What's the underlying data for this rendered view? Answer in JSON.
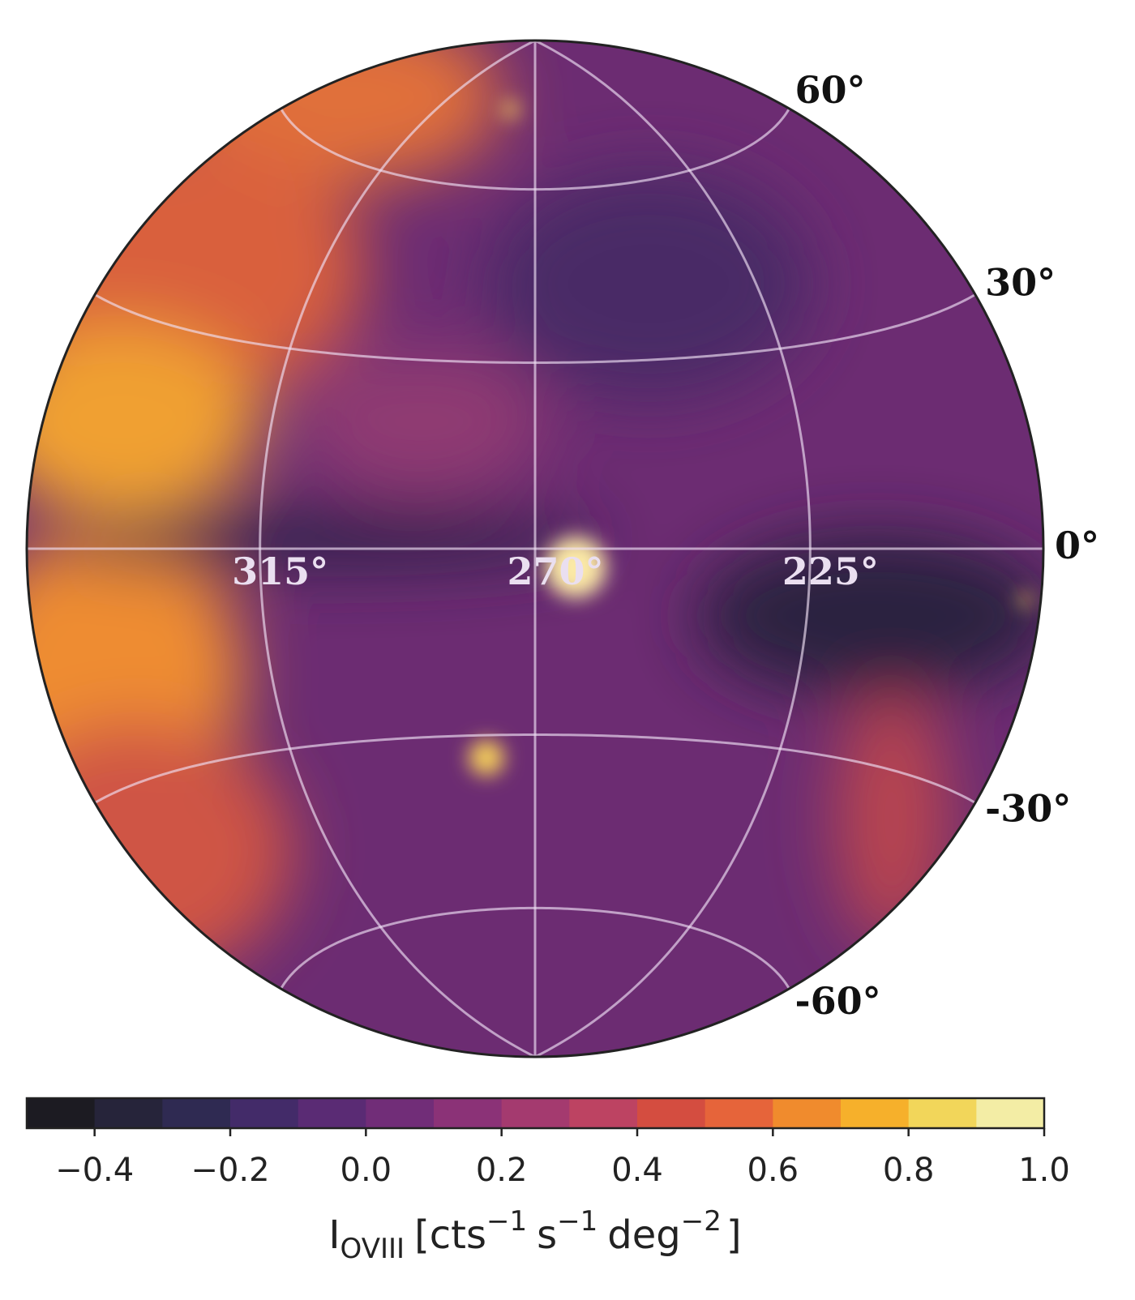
{
  "chart_data": {
    "type": "skymap",
    "projection": "lambert-azimuthal-equal-area",
    "center_lon": 270,
    "lat_ticks": [
      {
        "value": 60,
        "label": "60°"
      },
      {
        "value": 30,
        "label": "30°"
      },
      {
        "value": 0,
        "label": "0°"
      },
      {
        "value": -30,
        "label": "-30°"
      },
      {
        "value": -60,
        "label": "-60°"
      }
    ],
    "lon_ticks": [
      {
        "value": 315,
        "label": "315°"
      },
      {
        "value": 270,
        "label": "270°"
      },
      {
        "value": 225,
        "label": "225°"
      }
    ],
    "grid": true,
    "colorbar": {
      "lim": [
        -0.5,
        1.0
      ],
      "levels": [
        -0.5,
        -0.4,
        -0.3,
        -0.2,
        -0.1,
        0.0,
        0.1,
        0.2,
        0.3,
        0.4,
        0.5,
        0.6,
        0.7,
        0.8,
        0.9,
        1.0
      ],
      "colors": [
        "#1c1b22",
        "#26243a",
        "#2f2a52",
        "#432b69",
        "#5a2b74",
        "#712d78",
        "#8b3277",
        "#a43a6f",
        "#bd4362",
        "#d44d40",
        "#e6643a",
        "#f08b2d",
        "#f6b02b",
        "#f2d65a",
        "#f3eda5"
      ],
      "ticks": [
        {
          "value": -0.4,
          "label": "−0.4"
        },
        {
          "value": -0.2,
          "label": "−0.2"
        },
        {
          "value": 0.0,
          "label": "0.0"
        },
        0.2,
        0.4,
        0.6,
        0.8,
        {
          "value": 1.0,
          "label": "1.0"
        }
      ],
      "label": {
        "symbol": "I",
        "subscript": "OVIII",
        "units": [
          {
            "base": "[cts",
            "exp": "−1"
          },
          {
            "base": "s",
            "exp": "−1"
          },
          {
            "base": "deg",
            "exp": "−2"
          }
        ],
        "close": "]"
      }
    }
  }
}
